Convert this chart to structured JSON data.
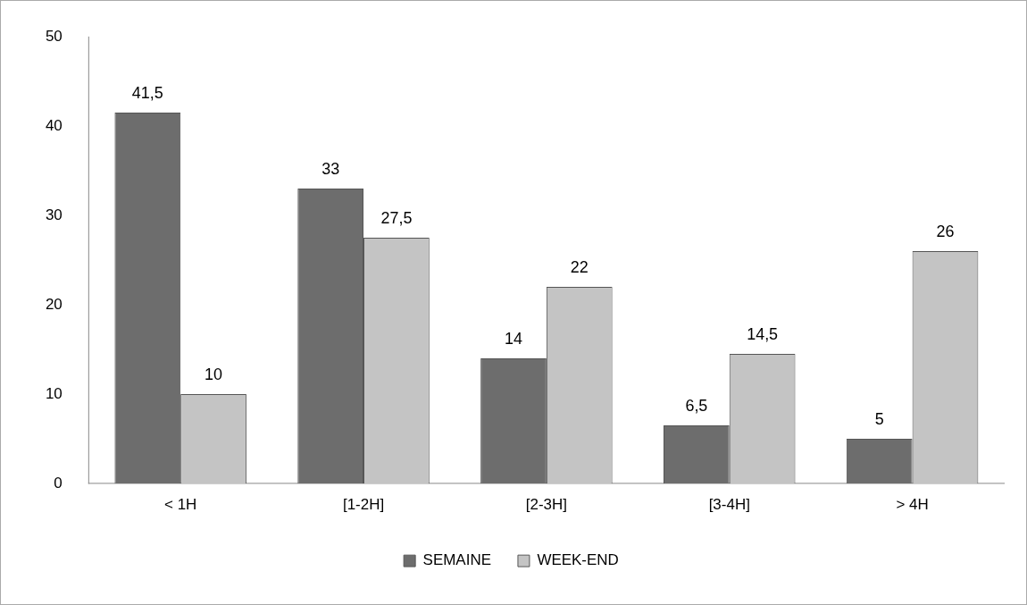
{
  "chart_data": {
    "type": "bar",
    "categories": [
      "< 1H",
      "[1-2H]",
      "[2-3H]",
      "[3-4H]",
      "> 4H"
    ],
    "series": [
      {
        "name": "SEMAINE",
        "color": "#6d6d6d",
        "values": [
          41.5,
          33,
          14,
          6.5,
          5
        ],
        "value_labels": [
          "41,5",
          "33",
          "14",
          "6,5",
          "5"
        ]
      },
      {
        "name": "WEEK-END",
        "color": "#c4c4c4",
        "values": [
          10,
          27.5,
          22,
          14.5,
          26
        ],
        "value_labels": [
          "10",
          "27,5",
          "22",
          "14,5",
          "26"
        ]
      }
    ],
    "ylim": [
      0,
      50
    ],
    "yticks": [
      0,
      10,
      20,
      30,
      40,
      50
    ],
    "grid": false,
    "legend": "bottom"
  }
}
